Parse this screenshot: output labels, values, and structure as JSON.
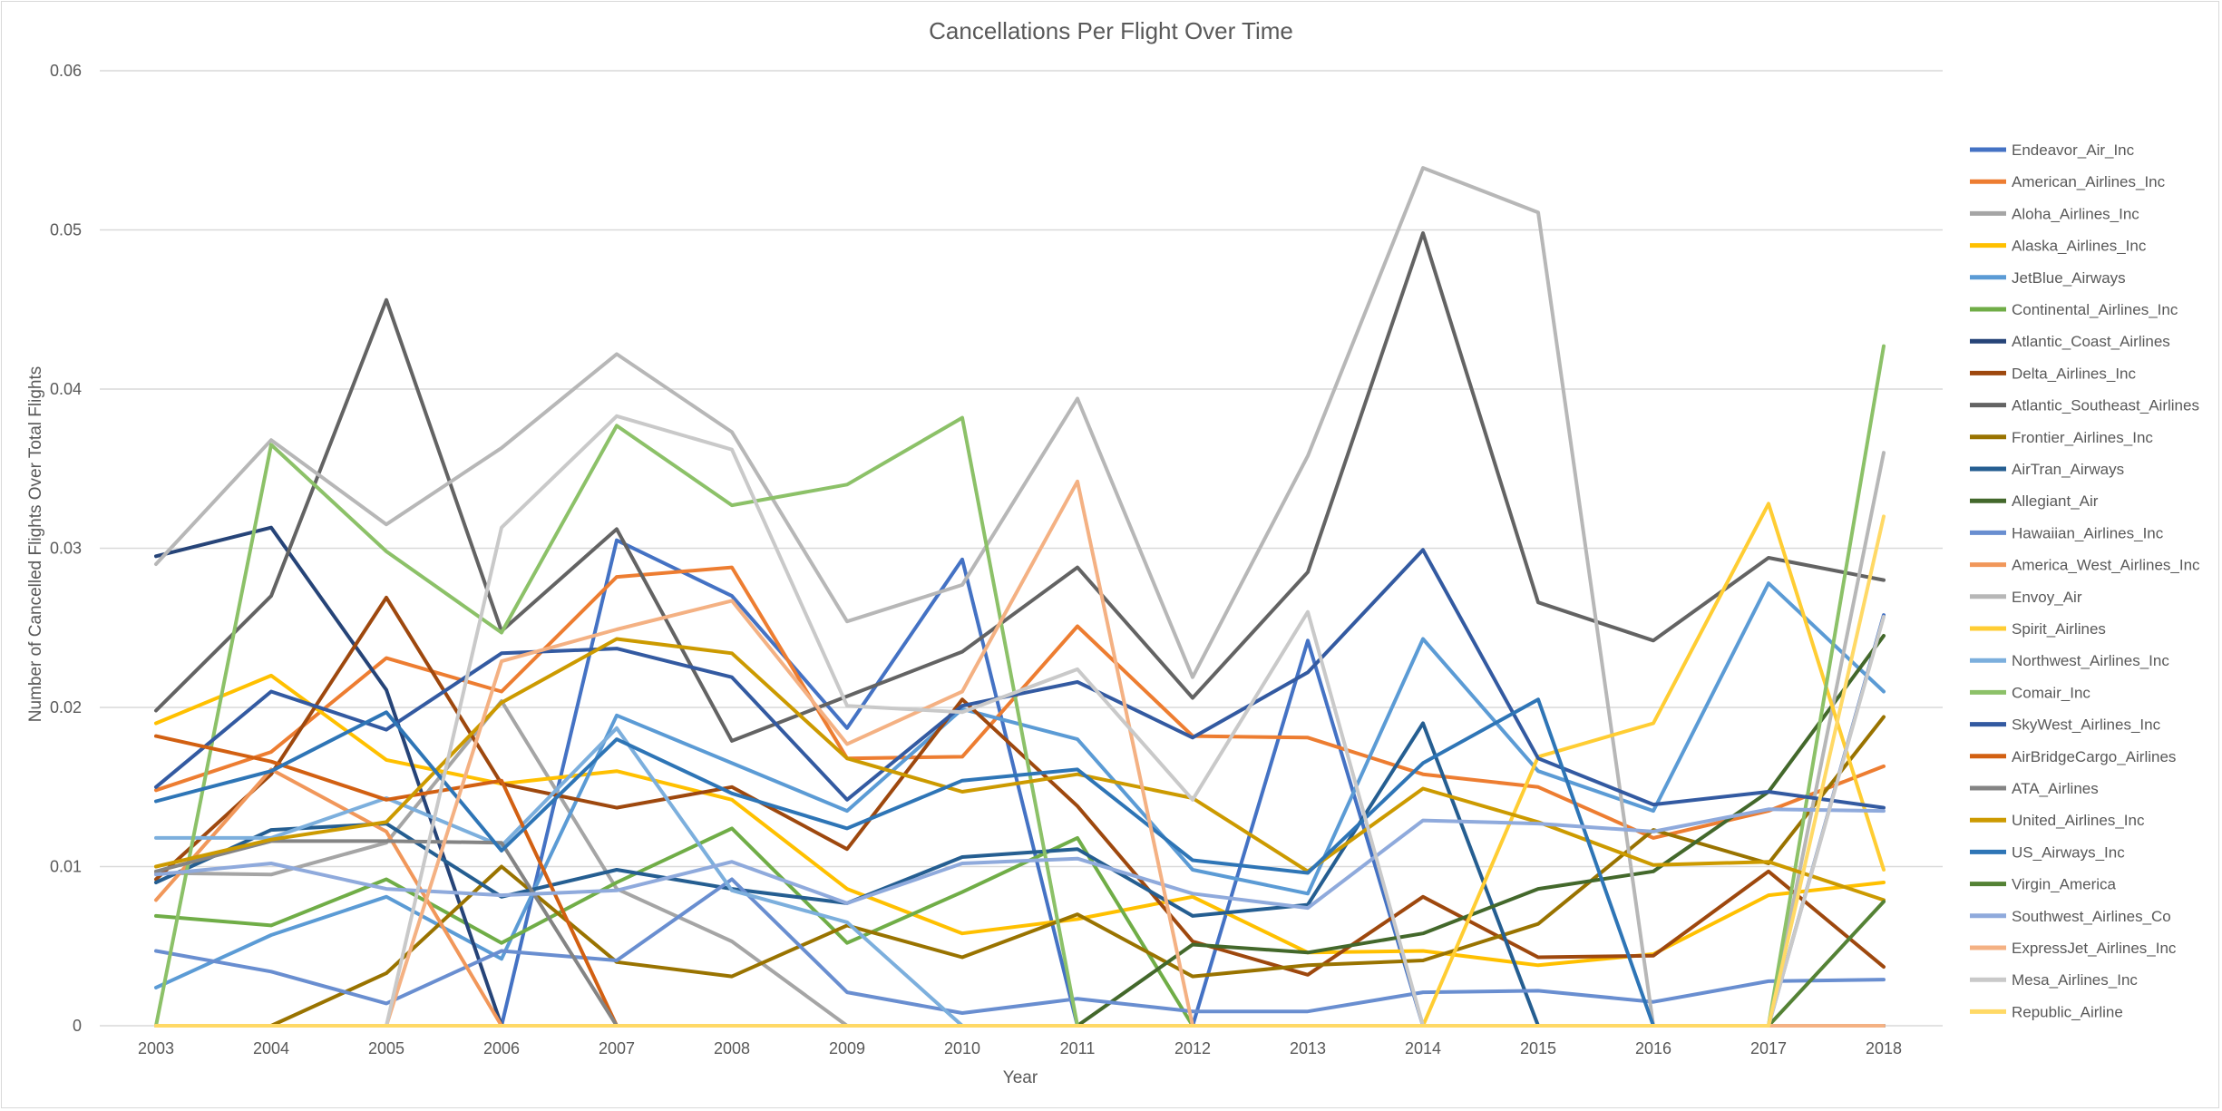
{
  "chart_data": {
    "type": "line",
    "title": "Cancellations Per Flight Over Time",
    "xlabel": "Year",
    "ylabel": "Number of Cancelled Flights Over Total Flights",
    "ylim": [
      0,
      0.06
    ],
    "yticks": [
      "0",
      "0.01",
      "0.02",
      "0.03",
      "0.04",
      "0.05",
      "0.06"
    ],
    "grid": true,
    "legend_position": "right",
    "x": [
      "2003",
      "2004",
      "2005",
      "2006",
      "2007",
      "2008",
      "2009",
      "2010",
      "2011",
      "2012",
      "2013",
      "2014",
      "2015",
      "2016",
      "2017",
      "2018"
    ],
    "series": [
      {
        "name": "Endeavor_Air_Inc",
        "color": "#4472c4",
        "values": [
          0,
          0,
          0,
          0,
          0.0305,
          0.027,
          0.0187,
          0.0293,
          0,
          0,
          0.0242,
          0,
          0,
          0,
          0,
          0.0258
        ]
      },
      {
        "name": "American_Airlines_Inc",
        "color": "#ed7d31",
        "values": [
          0.0148,
          0.0172,
          0.0231,
          0.021,
          0.0282,
          0.0288,
          0.0168,
          0.0169,
          0.0251,
          0.0182,
          0.0181,
          0.0158,
          0.015,
          0.0118,
          0.0135,
          0.0163
        ]
      },
      {
        "name": "Aloha_Airlines_Inc",
        "color": "#a5a5a5",
        "values": [
          0.0096,
          0.0095,
          0.0115,
          0.0204,
          0.0086,
          0.0053,
          0,
          0,
          0,
          0,
          0,
          0,
          0,
          0,
          0,
          0
        ]
      },
      {
        "name": "Alaska_Airlines_Inc",
        "color": "#ffc000",
        "values": [
          0.019,
          0.022,
          0.0167,
          0.0152,
          0.016,
          0.0142,
          0.0086,
          0.0058,
          0.0067,
          0.0081,
          0.0046,
          0.0047,
          0.0038,
          0.0045,
          0.0082,
          0.009
        ]
      },
      {
        "name": "JetBlue_Airways",
        "color": "#5b9bd5",
        "values": [
          0.0024,
          0.0057,
          0.0081,
          0.0042,
          0.0195,
          0.0165,
          0.0135,
          0.0199,
          0.018,
          0.0098,
          0.0083,
          0.0243,
          0.016,
          0.0135,
          0.0278,
          0.021
        ]
      },
      {
        "name": "Continental_Airlines_Inc",
        "color": "#70ad47",
        "values": [
          0.0069,
          0.0063,
          0.0092,
          0.0052,
          0.009,
          0.0124,
          0.0052,
          0.0084,
          0.0118,
          0,
          0,
          0,
          0,
          0,
          0,
          0
        ]
      },
      {
        "name": "Atlantic_Coast_Airlines",
        "color": "#264478",
        "values": [
          0.0295,
          0.0313,
          0.0211,
          0,
          0,
          0,
          0,
          0,
          0,
          0,
          0,
          0,
          0,
          0,
          0,
          0
        ]
      },
      {
        "name": "Delta_Airlines_Inc",
        "color": "#9e480e",
        "values": [
          0.0092,
          0.0158,
          0.0269,
          0.0152,
          0.0137,
          0.015,
          0.0111,
          0.0205,
          0.0138,
          0.0053,
          0.0032,
          0.0081,
          0.0043,
          0.0044,
          0.0097,
          0.0037
        ]
      },
      {
        "name": "Atlantic_Southeast_Airlines",
        "color": "#636363",
        "values": [
          0.0198,
          0.027,
          0.0456,
          0.0248,
          0.0312,
          0.0179,
          0.0207,
          0.0235,
          0.0288,
          0.0206,
          0.0285,
          0.0498,
          0.0266,
          0.0242,
          0.0294,
          0.028
        ]
      },
      {
        "name": "Frontier_Airlines_Inc",
        "color": "#997300",
        "values": [
          0,
          0,
          0.0033,
          0.01,
          0.004,
          0.0031,
          0.0063,
          0.0043,
          0.007,
          0.0031,
          0.0038,
          0.0041,
          0.0064,
          0.0123,
          0.0102,
          0.0194
        ]
      },
      {
        "name": "AirTran_Airways",
        "color": "#255e91",
        "values": [
          0.009,
          0.0123,
          0.0127,
          0.0081,
          0.0098,
          0.0086,
          0.0077,
          0.0106,
          0.0111,
          0.0069,
          0.0076,
          0.019,
          0,
          0,
          0,
          0
        ]
      },
      {
        "name": "Allegiant_Air",
        "color": "#43682b",
        "values": [
          0,
          0,
          0,
          0,
          0,
          0,
          0,
          0,
          0,
          0.0051,
          0.0046,
          0.0058,
          0.0086,
          0.0097,
          0.0147,
          0.0245
        ]
      },
      {
        "name": "Hawaiian_Airlines_Inc",
        "color": "#698ed0",
        "values": [
          0.0047,
          0.0034,
          0.0014,
          0.0047,
          0.0041,
          0.0092,
          0.0021,
          0.0008,
          0.0017,
          0.0009,
          0.0009,
          0.0021,
          0.0022,
          0.0015,
          0.0028,
          0.0029
        ]
      },
      {
        "name": "America_West_Airlines_Inc",
        "color": "#f1975a",
        "values": [
          0.0079,
          0.0161,
          0.0122,
          0,
          0,
          0,
          0,
          0,
          0,
          0,
          0,
          0,
          0,
          0,
          0,
          0
        ]
      },
      {
        "name": "Envoy_Air",
        "color": "#b7b7b7",
        "values": [
          0.029,
          0.0368,
          0.0315,
          0.0363,
          0.0422,
          0.0373,
          0.0254,
          0.0277,
          0.0394,
          0.0219,
          0.0358,
          0.0539,
          0.0511,
          0,
          0,
          0.036
        ]
      },
      {
        "name": "Spirit_Airlines",
        "color": "#ffcd33",
        "values": [
          0,
          0,
          0,
          0,
          0,
          0,
          0,
          0,
          0,
          0,
          0,
          0,
          0.0169,
          0.019,
          0.0328,
          0.0098
        ]
      },
      {
        "name": "Northwest_Airlines_Inc",
        "color": "#7cafdd",
        "values": [
          0.0118,
          0.0118,
          0.0143,
          0.0113,
          0.0187,
          0.0085,
          0.0065,
          0,
          0,
          0,
          0,
          0,
          0,
          0,
          0,
          0
        ]
      },
      {
        "name": "Comair_Inc",
        "color": "#8cc168",
        "values": [
          0,
          0.0365,
          0.0298,
          0.0247,
          0.0377,
          0.0327,
          0.034,
          0.0382,
          0,
          0,
          0,
          0,
          0,
          0,
          0,
          0.0427
        ]
      },
      {
        "name": "SkyWest_Airlines_Inc",
        "color": "#335aa1",
        "values": [
          0.015,
          0.021,
          0.0186,
          0.0234,
          0.0237,
          0.0219,
          0.0142,
          0.0201,
          0.0216,
          0.0181,
          0.0222,
          0.0299,
          0.0168,
          0.0139,
          0.0147,
          0.0137
        ]
      },
      {
        "name": "AirBridgeCargo_Airlines",
        "color": "#d26012",
        "values": [
          0.0182,
          0.0166,
          0.0142,
          0.0154,
          0,
          0,
          0,
          0,
          0,
          0,
          0,
          0,
          0,
          0,
          0,
          0
        ]
      },
      {
        "name": "ATA_Airlines",
        "color": "#848484",
        "values": [
          0.0097,
          0.0116,
          0.0116,
          0.0115,
          0,
          0,
          0,
          0,
          0,
          0,
          0,
          0,
          0,
          0,
          0,
          0
        ]
      },
      {
        "name": "United_Airlines_Inc",
        "color": "#cc9a00",
        "values": [
          0.01,
          0.0117,
          0.0128,
          0.0203,
          0.0243,
          0.0234,
          0.0168,
          0.0147,
          0.0158,
          0.0143,
          0.0097,
          0.0149,
          0.0128,
          0.0101,
          0.0103,
          0.0079
        ]
      },
      {
        "name": "US_Airways_Inc",
        "color": "#2e75b6",
        "values": [
          0.0141,
          0.016,
          0.0197,
          0.011,
          0.018,
          0.0146,
          0.0124,
          0.0154,
          0.0161,
          0.0104,
          0.0096,
          0.0165,
          0.0205,
          0,
          0,
          0
        ]
      },
      {
        "name": "Virgin_America",
        "color": "#548235",
        "values": [
          0,
          0,
          0,
          0,
          0,
          0,
          0,
          0,
          0,
          0,
          0,
          0,
          0,
          0,
          0,
          0.0078
        ]
      },
      {
        "name": "Southwest_Airlines_Co",
        "color": "#8faadc",
        "values": [
          0.0095,
          0.0102,
          0.0086,
          0.0082,
          0.0085,
          0.0103,
          0.0077,
          0.0102,
          0.0105,
          0.0083,
          0.0074,
          0.0129,
          0.0127,
          0.0122,
          0.0136,
          0.0135
        ]
      },
      {
        "name": "ExpressJet_Airlines_Inc",
        "color": "#f4b183",
        "values": [
          0,
          0,
          0,
          0.0229,
          0.0249,
          0.0267,
          0.0177,
          0.021,
          0.0342,
          0,
          0,
          0,
          0,
          0,
          0,
          0
        ]
      },
      {
        "name": "Mesa_Airlines_Inc",
        "color": "#c9c9c9",
        "values": [
          0,
          0,
          0,
          0.0313,
          0.0383,
          0.0362,
          0.0201,
          0.0197,
          0.0224,
          0.0142,
          0.026,
          0,
          0,
          0,
          0,
          0.0257
        ]
      },
      {
        "name": "Republic_Airline",
        "color": "#ffd966",
        "values": [
          0,
          0,
          0,
          0,
          0,
          0,
          0,
          0,
          0,
          0,
          0,
          0,
          0,
          0,
          0,
          0.032
        ]
      }
    ]
  }
}
